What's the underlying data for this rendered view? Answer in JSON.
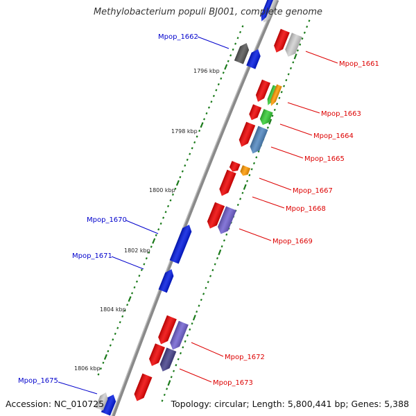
{
  "title": "Methylobacterium populi BJ001, complete genome",
  "footer": {
    "accession": "Accession: NC_010725",
    "topology": "Topology: circular; Length: 5,800,441 bp; Genes: 5,388"
  },
  "colors": {
    "backbone": "#8a8a8a",
    "tick": "#1a7a1a",
    "label_forward": "#0000cc",
    "label_reverse": "#dd0000",
    "red": "#ee0000",
    "blue": "#0018e0",
    "gray": "#9a9a9a",
    "light_gray": "#cfcfcf",
    "dark_gray": "#555555",
    "green": "#33cc33",
    "orange": "#ff9900",
    "steel_blue": "#4f86c0",
    "purple": "#7060d0",
    "dark_purple": "#44408a"
  },
  "kbp_labels": [
    "1796 kbp",
    "1798 kbp",
    "1800 kbp",
    "1802 kbp",
    "1804 kbp",
    "1806 kbp"
  ],
  "gene_labels": {
    "forward": [
      "Mpop_1662",
      "Mpop_1670",
      "Mpop_1671",
      "Mpop_1675"
    ],
    "reverse": [
      "Mpop_1661",
      "Mpop_1663",
      "Mpop_1664",
      "Mpop_1665",
      "Mpop_1667",
      "Mpop_1668",
      "Mpop_1669",
      "Mpop_1672",
      "Mpop_1673"
    ]
  }
}
